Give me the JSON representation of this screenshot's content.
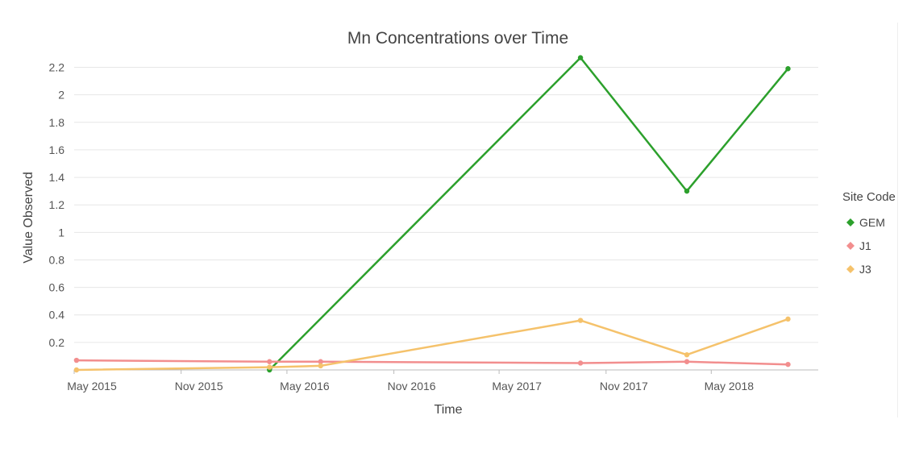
{
  "chart_data": {
    "type": "line",
    "title": "Mn Concentrations over Time",
    "xlabel": "Time",
    "ylabel": "Value Observed",
    "x_ticks": [
      "May 2015",
      "Nov 2015",
      "May 2016",
      "Nov 2016",
      "May 2017",
      "Nov 2017",
      "May 2018"
    ],
    "y_ticks": [
      "0.2",
      "0.4",
      "0.6",
      "0.8",
      "1",
      "1.2",
      "1.4",
      "1.6",
      "1.8",
      "2",
      "2.2"
    ],
    "xlim": [
      "2015-05-01",
      "2018-11-01"
    ],
    "ylim": [
      0,
      2.25
    ],
    "grid": "horizontal",
    "legend": {
      "title": "Site Code",
      "position": "right"
    },
    "series": [
      {
        "name": "GEM",
        "color": "#2ca02c",
        "points": [
          {
            "x": "2016-04-01",
            "y": 0.0
          },
          {
            "x": "2017-09-18",
            "y": 2.27
          },
          {
            "x": "2018-03-20",
            "y": 1.3
          },
          {
            "x": "2018-09-10",
            "y": 2.19
          }
        ]
      },
      {
        "name": "J1",
        "color": "#f28e8e",
        "points": [
          {
            "x": "2015-05-05",
            "y": 0.07
          },
          {
            "x": "2016-04-01",
            "y": 0.06
          },
          {
            "x": "2016-06-28",
            "y": 0.06
          },
          {
            "x": "2017-09-18",
            "y": 0.05
          },
          {
            "x": "2018-03-20",
            "y": 0.06
          },
          {
            "x": "2018-09-10",
            "y": 0.04
          }
        ]
      },
      {
        "name": "J3",
        "color": "#f5c26b",
        "points": [
          {
            "x": "2015-05-05",
            "y": 0.0
          },
          {
            "x": "2016-04-01",
            "y": 0.02
          },
          {
            "x": "2016-06-28",
            "y": 0.03
          },
          {
            "x": "2017-09-18",
            "y": 0.36
          },
          {
            "x": "2018-03-20",
            "y": 0.11
          },
          {
            "x": "2018-09-10",
            "y": 0.37
          }
        ]
      }
    ]
  }
}
